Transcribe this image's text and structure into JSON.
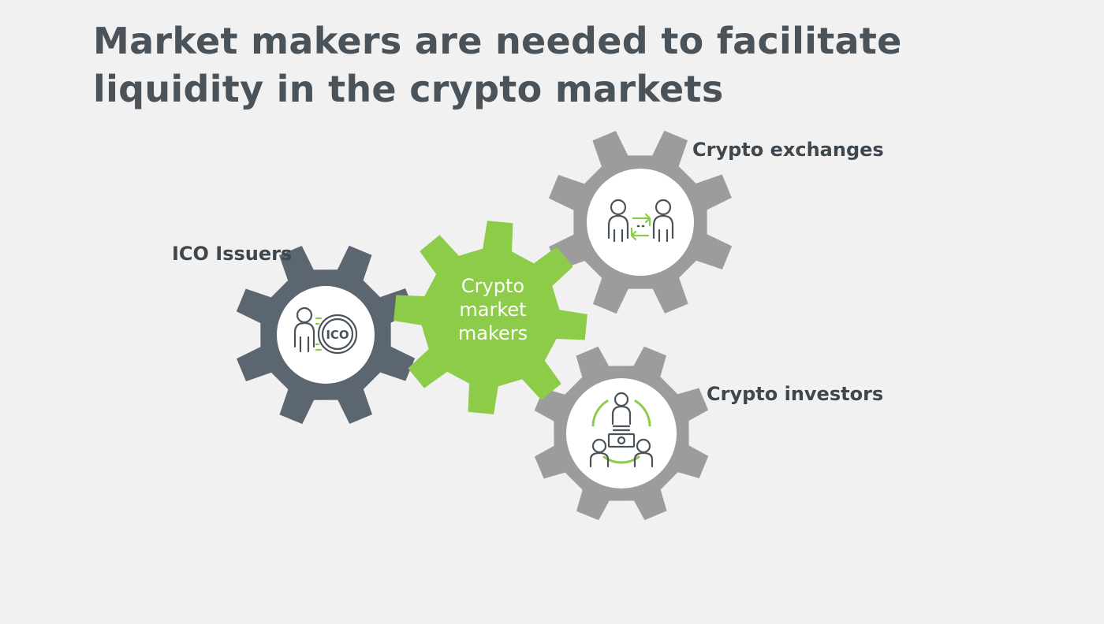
{
  "title": "Market makers are needed to facilitate liquidity in the crypto markets",
  "center": {
    "lines": [
      "Crypto",
      "market",
      "makers"
    ]
  },
  "labels": {
    "exchanges": "Crypto exchanges",
    "issuers": "ICO Issuers",
    "investors": "Crypto investors"
  },
  "ico_badge": "ICO",
  "colors": {
    "background": "#f1f1f1",
    "title": "#4a525a",
    "gear_dark": "#5c6670",
    "gear_gray": "#9c9c9c",
    "gear_green": "#8ccc48",
    "icon_stroke": "#4a525a",
    "icon_accent": "#8ccc48"
  },
  "icons": {
    "exchanges": "people-exchange-icon",
    "issuers": "person-ico-icon",
    "investors": "investor-group-icon"
  }
}
